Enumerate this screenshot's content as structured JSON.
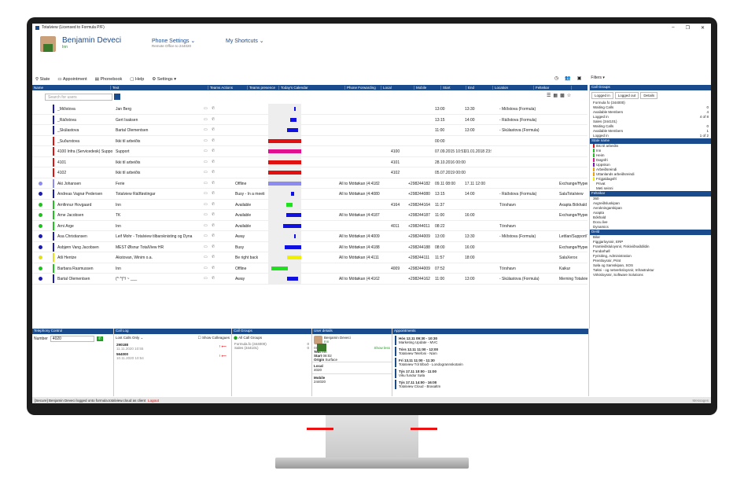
{
  "app": {
    "title": "Totalview (Licensed to Formula P/F)"
  },
  "header": {
    "user_name": "Benjamin Deveci",
    "user_status": "Inn",
    "phone_settings": "Phone Settings",
    "phone_sub": "Remote Office to 244020",
    "shortcuts": "My Shortcuts"
  },
  "toolbar": {
    "state": "State",
    "appointment": "Appointment",
    "phonebook": "Phonebook",
    "help": "Help",
    "settings": "Settings"
  },
  "columns": [
    "Name",
    "Text",
    "Teams Actions",
    "Teams presence",
    "Today's Calendar",
    "Phone Forwarding",
    "Local",
    "Mobile",
    "Start",
    "End",
    "Location",
    "Felteikar"
  ],
  "search": {
    "placeholder": "Search for users"
  },
  "rows": [
    {
      "name": "_Miðstova",
      "text": "Jan Berg",
      "presence": "",
      "fwd": "",
      "local": "",
      "mobile": "",
      "start": "13:00",
      "end": "13:30",
      "loc": "- Miðstova (Formula)",
      "field": "",
      "color": "#1a1ab0",
      "cal": {
        "c": "#1010e0",
        "s": 0.78,
        "w": 0.05
      }
    },
    {
      "name": "_Ráðstova",
      "text": "Gert Isaksen",
      "presence": "",
      "fwd": "",
      "local": "",
      "mobile": "",
      "start": "13:15",
      "end": "14:00",
      "loc": "- Ráðstova (Formula)",
      "field": "",
      "color": "#1a1ab0",
      "cal": {
        "c": "#1010e0",
        "s": 0.66,
        "w": 0.2
      }
    },
    {
      "name": "_Skúlastova",
      "text": "Bartal Olementsen",
      "presence": "",
      "fwd": "",
      "local": "",
      "mobile": "",
      "start": "11:00",
      "end": "13:00",
      "loc": "- Skúlastova (Formula)",
      "field": "",
      "color": "#1a1ab0",
      "cal": {
        "c": "#1010e0",
        "s": 0.56,
        "w": 0.34
      }
    },
    {
      "name": "_Suðurstova",
      "text": "Ikki til arbeiðis",
      "presence": "",
      "fwd": "",
      "local": "",
      "mobile": "",
      "start": "00:00",
      "end": "",
      "loc": "",
      "field": "",
      "color": "#e01010",
      "cal": {
        "c": "#e01010",
        "s": 0,
        "w": 1
      }
    },
    {
      "name": "4100 Infra (Servicedesk) Support",
      "text": "Support",
      "presence": "",
      "fwd": "",
      "local": "4100",
      "mobile": "",
      "start": "07.09.2015 10:51",
      "end": "01.01.2018 23:59",
      "loc": "",
      "field": "",
      "color": "#e01010",
      "cal": {
        "c": "#e01090",
        "s": 0,
        "w": 1
      }
    },
    {
      "name": "4101",
      "text": "Ikki til arbeiðis",
      "presence": "",
      "fwd": "",
      "local": "4101",
      "mobile": "",
      "start": "28.10.2016 00:00",
      "end": "",
      "loc": "",
      "field": "",
      "color": "#e01010",
      "cal": {
        "c": "#e01010",
        "s": 0,
        "w": 1
      }
    },
    {
      "name": "4102",
      "text": "Ikki til arbeiðis",
      "presence": "",
      "fwd": "",
      "local": "4102",
      "mobile": "",
      "start": "05.07.2019 00:00",
      "end": "",
      "loc": "",
      "field": "",
      "color": "#e01010",
      "cal": {
        "c": "#e01010",
        "s": 0,
        "w": 1
      }
    },
    {
      "name": "Áki Johansen",
      "text": "Ferie",
      "presence": "Offline",
      "fwd": "All to Móttøkan (4:4182",
      "local": "",
      "mobile": "+298244182",
      "start": "09.11 08:00",
      "end": "17.11 12:00",
      "loc": "",
      "field": "Exchange/Hyper/O",
      "color": "#8c8cf0",
      "cal": {
        "c": "#8c8cf0",
        "s": 0,
        "w": 1
      }
    },
    {
      "name": "Andreas Vagnø Pedersen",
      "text": "Totalview Ráðføstingar",
      "presence": "Busy - In a meeti",
      "fwd": "All to Móttøkan (4:4080",
      "local": "",
      "mobile": "+298244080",
      "start": "13:15",
      "end": "14:00",
      "loc": "- Ráðstova (Formula)",
      "field": "SalaTotalview",
      "color": "#1a1ab0",
      "cal": {
        "c": "#1010e0",
        "s": 0.68,
        "w": 0.1
      }
    },
    {
      "name": "Arnfinnur Hovgaard",
      "text": "Inn",
      "presence": "Available",
      "fwd": "",
      "local": "4164",
      "mobile": "+298244164",
      "start": "11:37",
      "end": "",
      "loc": "Tórshavn",
      "field": "Axapta Bókhald Dynamics",
      "color": "#20c020",
      "cal": {
        "c": "#20e020",
        "s": 0.55,
        "w": 0.2
      }
    },
    {
      "name": "Arne Jacobsen",
      "text": "TK",
      "presence": "Available",
      "fwd": "All to Móttøkan (4:4187",
      "local": "",
      "mobile": "+298244187",
      "start": "11:00",
      "end": "16:00",
      "loc": "",
      "field": "Exchange/Hyper/C",
      "color": "#20c020",
      "cal": {
        "c": "#1010e0",
        "s": 0.55,
        "w": 0.45
      }
    },
    {
      "name": "Árni Árge",
      "text": "Inn",
      "presence": "Available",
      "fwd": "",
      "local": "4011",
      "mobile": "+298244011",
      "start": "08:22",
      "end": "",
      "loc": "Tórshavn",
      "field": "",
      "color": "#20c020",
      "cal": {
        "c": "#1010e0",
        "s": 0.45,
        "w": 0.55
      }
    },
    {
      "name": "Ása Christiansen",
      "text": "Leif Mohr - Totalview tilbarsknisting og Dyna",
      "presence": "Away",
      "fwd": "All to Móttøkan (4:4009",
      "local": "",
      "mobile": "+298244009",
      "start": "13:00",
      "end": "13:30",
      "loc": "- Miðstova (Formula)",
      "field": "Lettlan/Support/To",
      "color": "#1a1ab0",
      "cal": {
        "c": "#1010e0",
        "s": 0.78,
        "w": 0.05
      }
    },
    {
      "name": "Ásbjørn Vang Jacobsen",
      "text": "MEST Ølsnur TotalView HR",
      "presence": "Busy",
      "fwd": "All to Móttøkan (4:4188",
      "local": "",
      "mobile": "+298244188",
      "start": "08:00",
      "end": "16:00",
      "loc": "",
      "field": "Exchange/Hyper/O",
      "color": "#1a1ab0",
      "cal": {
        "c": "#1010e0",
        "s": 0.5,
        "w": 0.5
      }
    },
    {
      "name": "Atli Hentze",
      "text": "Akstovan, Winim o.a.",
      "presence": "Be right back",
      "fwd": "All to Móttøkan (4:4111",
      "local": "",
      "mobile": "+298244111",
      "start": "11:57",
      "end": "18:00",
      "loc": "",
      "field": "SalaXerox",
      "color": "#e0e020",
      "cal": {
        "c": "#f0f000",
        "s": 0.58,
        "w": 0.42
      }
    },
    {
      "name": "Barbara Rasmussen",
      "text": "Inn",
      "presence": "Offline",
      "fwd": "",
      "local": "4009",
      "mobile": "+298244009",
      "start": "07:52",
      "end": "",
      "loc": "Tórshavn",
      "field": "Kaikur",
      "color": "#20c020",
      "cal": {
        "c": "#20e020",
        "s": 0.1,
        "w": 0.5
      }
    },
    {
      "name": "Bartal Olementsen",
      "text": "(^ ^)^/ ~ ___",
      "presence": "Away",
      "fwd": "All to Móttøkan (4:4162",
      "local": "",
      "mobile": "+298244162",
      "start": "11:00",
      "end": "13:00",
      "loc": "- Skúlastova (Formula)",
      "field": "Merning Totalview",
      "color": "#1a1ab0",
      "cal": {
        "c": "#1010e0",
        "s": 0.56,
        "w": 0.34
      }
    }
  ],
  "right": {
    "header": "Call Groups",
    "tabs": [
      "Logged in",
      "Logged out",
      "Details"
    ],
    "groups": [
      {
        "label": "Formula fo (344000)",
        "v": ""
      },
      {
        "label": "Waiting Calls",
        "v": "0"
      },
      {
        "label": "Available Members",
        "v": "4"
      },
      {
        "label": "Logged in",
        "v": "4 of 8"
      },
      {
        "label": "Sales (344101)",
        "v": ""
      },
      {
        "label": "Waiting Calls",
        "v": "0"
      },
      {
        "label": "Available Members",
        "v": "1"
      },
      {
        "label": "Logged in",
        "v": "1 of 2"
      }
    ],
    "state_header": "State name",
    "states": [
      {
        "label": "Ikki til arbeiðis",
        "c": "#e01010"
      },
      {
        "label": "Inn",
        "c": "#20c020"
      },
      {
        "label": "Heim",
        "c": "#20c020"
      },
      {
        "label": "Døgnfri",
        "c": "#e01090"
      },
      {
        "label": "Uppskon",
        "c": "#8010c0"
      },
      {
        "label": "Arbeiðsreindi",
        "c": "#f0a000"
      },
      {
        "label": "Uttanlands arbeiðsreindi",
        "c": "#f0a000"
      },
      {
        "label": "Frígjaldagsfrí",
        "c": "#f0f000"
      },
      {
        "label": "Privat",
        "c": ""
      },
      {
        "label": "Meti seinni",
        "c": ""
      }
    ],
    "field_header": "Felteikar",
    "fields": [
      "360",
      "Avgreiðsluskipan",
      "Avrokningarskipan",
      "Axapta",
      "Bókhald",
      "Docu.live",
      "Dynamics"
    ],
    "dept_header": "Deild",
    "depts": [
      "Bilar",
      "Figgjarloysnir, ERP",
      "Framleiðsluloysnir, Fiskiviðnaðdildin",
      "Fundarhøll",
      "Fyrisiting, Administration",
      "Prentloysnir, Print",
      "Søla og Samskipan, SOS",
      "Tøkni - og netverksloysnir, Infrastruktur",
      "Virkisloysnir, Software Solutions"
    ]
  },
  "telephony": {
    "title": "Telephony Control",
    "number_label": "Number",
    "number": "4020"
  },
  "calllog": {
    "title": "Call Log",
    "filter": "Lost Calls Only",
    "show_colleagues": "Show Colleagues",
    "entries": [
      {
        "num": "290188",
        "time": "11.11.2020 10:55"
      },
      {
        "num": "564000",
        "time": "10.11.2020 10:54"
      }
    ]
  },
  "callgroups": {
    "title": "Call Groups",
    "all": "All Call Groups",
    "items": [
      {
        "label": "Formula.fo (344000)",
        "v": "0"
      },
      {
        "label": "Sales (344101)",
        "v": "0"
      }
    ]
  },
  "userdetails": {
    "title": "User details",
    "name": "Benjamin Deveci",
    "status": "Inn",
    "time": "08:02",
    "show_less": "Show less",
    "text_label": "Text",
    "text_val": "Inn",
    "start_label": "Start",
    "start_val": "08:02",
    "origin_label": "Origin",
    "origin_val": "Surface",
    "local_label": "Local",
    "local_val": "4020",
    "mobile_label": "Mobile",
    "mobile_val": "244020"
  },
  "appointments": {
    "title": "Appointments",
    "items": [
      {
        "t": "Hós 12.11 09:30 - 10:30",
        "d": "Marketing Update - MVC"
      },
      {
        "t": "Tórs 12.11 11:00 - 12:00",
        "d": "Totalview Telefoni - Nám"
      },
      {
        "t": "Fri 13.11 11:00 - 11:30",
        "d": "Totalview Tól tilboð - Londogrannskotarin"
      },
      {
        "t": "Týs 17.11 10:00 - 11:00",
        "d": "Viku fundur Søla"
      },
      {
        "t": "Týs 17.11 14:00 - 16:00",
        "d": "Totalview Cloud - Brasaltm"
      }
    ]
  },
  "status": {
    "text": "[Secure] Benjamin Deveci logged onto formula.totalview.cloud as client",
    "logout": "Logout",
    "right": "Messages"
  }
}
